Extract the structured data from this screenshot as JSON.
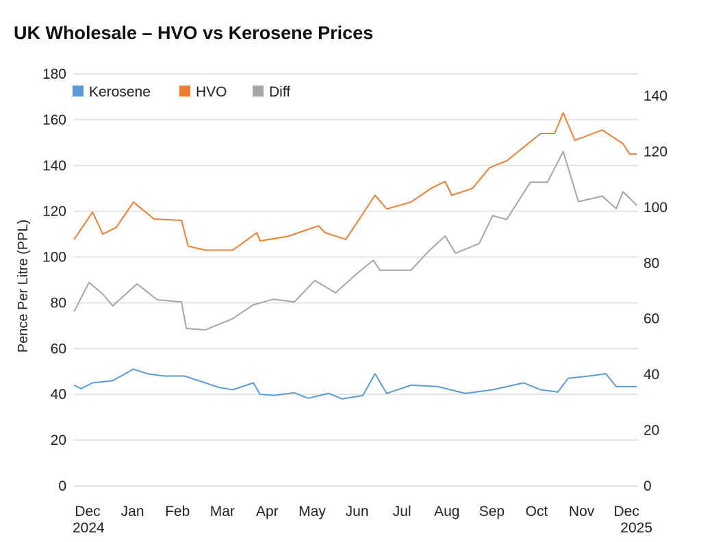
{
  "chart_data": {
    "type": "line",
    "title": "UK Wholesale  –  HVO vs Kerosene Prices",
    "ylabel": "Pence Per Litre (PPL)",
    "xlabel": "",
    "ylim": [
      0,
      180
    ],
    "y2lim": [
      0,
      140
    ],
    "yticks": [
      "0",
      "20",
      "40",
      "60",
      "80",
      "100",
      "120",
      "140",
      "160",
      "180"
    ],
    "y2ticks": [
      "0",
      "20",
      "40",
      "60",
      "80",
      "100",
      "120",
      "140"
    ],
    "xticks": [
      "Dec",
      "Jan",
      "Feb",
      "Mar",
      "Apr",
      "May",
      "Jun",
      "Jul",
      "Aug",
      "Sep",
      "Oct",
      "Nov",
      "Dec"
    ],
    "xsub": {
      "first": "2024",
      "last": "2025"
    },
    "x_units": "months since Dec 2024",
    "grid": true,
    "legend_position": "top-left",
    "series": [
      {
        "name": "Kerosene",
        "color": "#5b9bd5",
        "axis": "left",
        "points": [
          [
            -0.3,
            44
          ],
          [
            -0.15,
            42.5
          ],
          [
            0.11,
            45
          ],
          [
            0.56,
            46
          ],
          [
            1.02,
            51
          ],
          [
            1.33,
            49
          ],
          [
            1.71,
            48
          ],
          [
            2.16,
            48
          ],
          [
            2.62,
            45
          ],
          [
            2.93,
            43
          ],
          [
            3.23,
            42
          ],
          [
            3.69,
            45
          ],
          [
            3.84,
            40
          ],
          [
            4.15,
            39.5
          ],
          [
            4.6,
            40.7
          ],
          [
            4.91,
            38.3
          ],
          [
            5.37,
            40.4
          ],
          [
            5.67,
            38
          ],
          [
            6.13,
            39.5
          ],
          [
            6.4,
            49
          ],
          [
            6.66,
            40.4
          ],
          [
            7.2,
            44
          ],
          [
            7.8,
            43.4
          ],
          [
            8.41,
            40.4
          ],
          [
            9.02,
            42
          ],
          [
            9.71,
            45
          ],
          [
            10.09,
            42
          ],
          [
            10.47,
            41
          ],
          [
            10.7,
            47
          ],
          [
            11.16,
            48
          ],
          [
            11.54,
            49
          ],
          [
            11.77,
            43.4
          ],
          [
            12.23,
            43.4
          ]
        ]
      },
      {
        "name": "HVO",
        "color": "#ed7d31",
        "axis": "left",
        "points": [
          [
            -0.3,
            107.7
          ],
          [
            0.11,
            119.6
          ],
          [
            0.34,
            110
          ],
          [
            0.64,
            113
          ],
          [
            1.02,
            124
          ],
          [
            1.48,
            116.6
          ],
          [
            2.09,
            116
          ],
          [
            2.24,
            104.7
          ],
          [
            2.62,
            103
          ],
          [
            3.23,
            103
          ],
          [
            3.77,
            110.6
          ],
          [
            3.84,
            107
          ],
          [
            4.45,
            109
          ],
          [
            5.14,
            113.6
          ],
          [
            5.29,
            110.6
          ],
          [
            5.75,
            107.7
          ],
          [
            6.05,
            116.6
          ],
          [
            6.4,
            127
          ],
          [
            6.66,
            121
          ],
          [
            7.2,
            124
          ],
          [
            7.65,
            130
          ],
          [
            7.96,
            133
          ],
          [
            8.11,
            127
          ],
          [
            8.57,
            130
          ],
          [
            8.95,
            139
          ],
          [
            9.33,
            142
          ],
          [
            9.71,
            148
          ],
          [
            10.09,
            154
          ],
          [
            10.4,
            154
          ],
          [
            10.59,
            163
          ],
          [
            10.85,
            151
          ],
          [
            11.46,
            155.5
          ],
          [
            11.92,
            149.5
          ],
          [
            12.07,
            145
          ],
          [
            12.23,
            145
          ]
        ]
      },
      {
        "name": "Diff",
        "color": "#a5a5a5",
        "axis": "right",
        "points": [
          [
            -0.3,
            62.6
          ],
          [
            0.03,
            73
          ],
          [
            0.34,
            68.8
          ],
          [
            0.56,
            64.6
          ],
          [
            1.1,
            72.5
          ],
          [
            1.55,
            66.8
          ],
          [
            2.09,
            66
          ],
          [
            2.2,
            56.5
          ],
          [
            2.62,
            56
          ],
          [
            3.23,
            60
          ],
          [
            3.69,
            65
          ],
          [
            4.15,
            67
          ],
          [
            4.6,
            66
          ],
          [
            5.06,
            73.7
          ],
          [
            5.52,
            69.3
          ],
          [
            5.98,
            76
          ],
          [
            6.36,
            81
          ],
          [
            6.51,
            77.4
          ],
          [
            7.2,
            77.4
          ],
          [
            7.58,
            84
          ],
          [
            7.96,
            89.7
          ],
          [
            8.19,
            83.5
          ],
          [
            8.72,
            87
          ],
          [
            9.02,
            97
          ],
          [
            9.33,
            95.6
          ],
          [
            9.86,
            109
          ],
          [
            10.24,
            109
          ],
          [
            10.59,
            120
          ],
          [
            10.93,
            102
          ],
          [
            11.46,
            104
          ],
          [
            11.77,
            99.5
          ],
          [
            11.92,
            105.6
          ],
          [
            12.23,
            100.7
          ]
        ]
      }
    ]
  }
}
